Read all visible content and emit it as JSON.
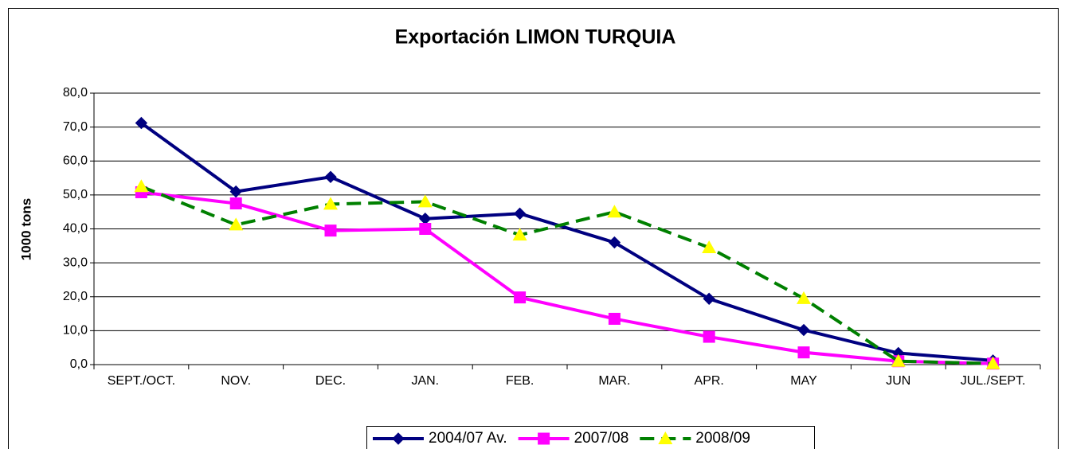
{
  "chart_data": {
    "type": "line",
    "title": "Exportación LIMON TURQUIA",
    "y_label": "1000 tons",
    "categories": [
      "SEPT./OCT.",
      "NOV.",
      "DEC.",
      "JAN.",
      "FEB.",
      "MAR.",
      "APR.",
      "MAY",
      "JUN",
      "JUL./SEPT."
    ],
    "series": [
      {
        "name": "2004/07 Av.",
        "color": "#000080",
        "marker": "diamond",
        "marker_color": "#000080",
        "dash": false,
        "values": [
          71.2,
          51.0,
          55.3,
          43.0,
          44.5,
          36.0,
          19.4,
          10.2,
          3.4,
          1.2
        ]
      },
      {
        "name": "2007/08",
        "color": "#ff00ff",
        "marker": "square",
        "marker_color": "#ff00ff",
        "dash": false,
        "values": [
          50.8,
          47.5,
          39.5,
          40.0,
          19.8,
          13.5,
          8.2,
          3.6,
          1.0,
          0.3
        ]
      },
      {
        "name": "2008/09",
        "color": "#008000",
        "marker": "triangle",
        "marker_color": "#ffff00",
        "dash": true,
        "values": [
          52.5,
          41.2,
          47.3,
          48.0,
          38.2,
          45.0,
          34.5,
          19.5,
          1.0,
          0.3
        ]
      }
    ],
    "ylim": [
      0,
      80
    ],
    "yticks": [
      {
        "value": 0,
        "label": "0,0"
      },
      {
        "value": 10,
        "label": "10,0"
      },
      {
        "value": 20,
        "label": "20,0"
      },
      {
        "value": 30,
        "label": "30,0"
      },
      {
        "value": 40,
        "label": "40,0"
      },
      {
        "value": 50,
        "label": "50,0"
      },
      {
        "value": 60,
        "label": "60,0"
      },
      {
        "value": 70,
        "label": "70,0"
      },
      {
        "value": 80,
        "label": "80,0"
      }
    ],
    "grid": true,
    "legend": "bottom"
  }
}
